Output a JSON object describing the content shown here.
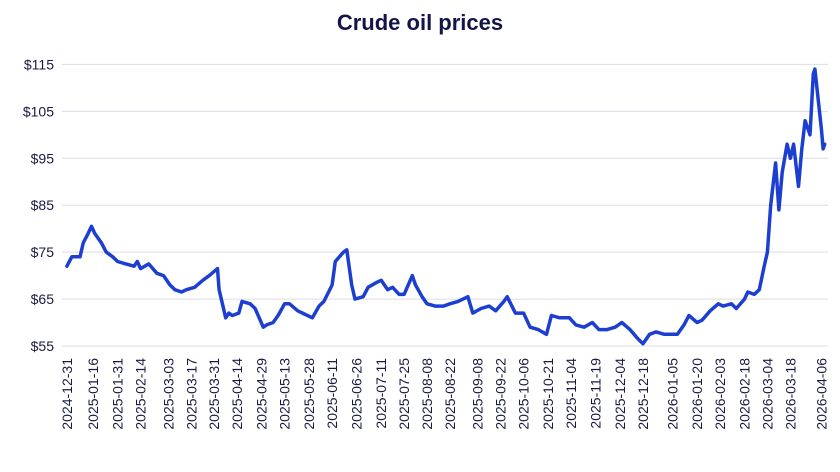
{
  "chart_data": {
    "type": "line",
    "title": "Crude oil prices",
    "color": "#1c3fd1",
    "grid": true,
    "xlim": [
      "2024-12-28",
      "2026-04-10"
    ],
    "ylim": [
      55,
      117
    ],
    "yticks": [
      {
        "value": 55,
        "label": "$55"
      },
      {
        "value": 65,
        "label": "$65"
      },
      {
        "value": 75,
        "label": "$75"
      },
      {
        "value": 85,
        "label": "$85"
      },
      {
        "value": 95,
        "label": "$95"
      },
      {
        "value": 105,
        "label": "$105"
      },
      {
        "value": 115,
        "label": "$115"
      }
    ],
    "xticks": [
      "2024-12-31",
      "2025-01-16",
      "2025-01-31",
      "2025-02-14",
      "2025-03-03",
      "2025-03-17",
      "2025-03-31",
      "2025-04-14",
      "2025-04-29",
      "2025-05-13",
      "2025-05-28",
      "2025-06-11",
      "2025-06-26",
      "2025-07-11",
      "2025-07-25",
      "2025-08-08",
      "2025-08-22",
      "2025-09-08",
      "2025-09-22",
      "2025-10-06",
      "2025-10-21",
      "2025-11-04",
      "2025-11-19",
      "2025-12-04",
      "2025-12-18",
      "2026-01-05",
      "2026-01-20",
      "2026-02-03",
      "2026-02-18",
      "2026-03-04",
      "2026-03-18",
      "2026-04-06"
    ],
    "x": [
      "2024-12-31",
      "2025-01-03",
      "2025-01-08",
      "2025-01-10",
      "2025-01-13",
      "2025-01-15",
      "2025-01-17",
      "2025-01-21",
      "2025-01-24",
      "2025-01-28",
      "2025-01-31",
      "2025-02-05",
      "2025-02-10",
      "2025-02-12",
      "2025-02-14",
      "2025-02-19",
      "2025-02-24",
      "2025-02-28",
      "2025-03-04",
      "2025-03-07",
      "2025-03-11",
      "2025-03-14",
      "2025-03-19",
      "2025-03-24",
      "2025-03-28",
      "2025-04-02",
      "2025-04-03",
      "2025-04-07",
      "2025-04-09",
      "2025-04-11",
      "2025-04-15",
      "2025-04-17",
      "2025-04-22",
      "2025-04-25",
      "2025-04-30",
      "2025-05-02",
      "2025-05-06",
      "2025-05-09",
      "2025-05-13",
      "2025-05-16",
      "2025-05-21",
      "2025-05-27",
      "2025-05-30",
      "2025-06-03",
      "2025-06-06",
      "2025-06-11",
      "2025-06-13",
      "2025-06-18",
      "2025-06-20",
      "2025-06-23",
      "2025-06-25",
      "2025-06-30",
      "2025-07-03",
      "2025-07-08",
      "2025-07-11",
      "2025-07-15",
      "2025-07-18",
      "2025-07-22",
      "2025-07-25",
      "2025-07-30",
      "2025-08-01",
      "2025-08-05",
      "2025-08-08",
      "2025-08-13",
      "2025-08-18",
      "2025-08-22",
      "2025-08-27",
      "2025-09-02",
      "2025-09-05",
      "2025-09-10",
      "2025-09-15",
      "2025-09-19",
      "2025-09-24",
      "2025-09-26",
      "2025-10-01",
      "2025-10-06",
      "2025-10-10",
      "2025-10-15",
      "2025-10-20",
      "2025-10-23",
      "2025-10-28",
      "2025-11-03",
      "2025-11-07",
      "2025-11-12",
      "2025-11-17",
      "2025-11-21",
      "2025-11-26",
      "2025-12-01",
      "2025-12-05",
      "2025-12-10",
      "2025-12-15",
      "2025-12-18",
      "2025-12-22",
      "2025-12-26",
      "2025-12-31",
      "2026-01-05",
      "2026-01-08",
      "2026-01-12",
      "2026-01-15",
      "2026-01-20",
      "2026-01-23",
      "2026-01-28",
      "2026-02-02",
      "2026-02-05",
      "2026-02-10",
      "2026-02-13",
      "2026-02-18",
      "2026-02-20",
      "2026-02-24",
      "2026-02-27",
      "2026-03-02",
      "2026-03-04",
      "2026-03-06",
      "2026-03-09",
      "2026-03-11",
      "2026-03-13",
      "2026-03-16",
      "2026-03-18",
      "2026-03-20",
      "2026-03-23",
      "2026-03-25",
      "2026-03-27",
      "2026-03-30",
      "2026-04-01",
      "2026-04-02",
      "2026-04-06",
      "2026-04-07",
      "2026-04-08"
    ],
    "values": [
      72,
      74,
      74,
      77,
      79,
      80.5,
      79,
      77,
      75,
      74,
      73,
      72.5,
      72,
      73,
      71.5,
      72.5,
      70.5,
      70,
      68,
      67,
      66.5,
      67,
      67.5,
      69,
      70,
      71.5,
      67,
      61,
      62,
      61.5,
      62,
      64.5,
      64,
      63,
      59,
      59.5,
      60,
      61.5,
      64,
      64,
      62.5,
      61.5,
      61,
      63.5,
      64.5,
      68,
      73,
      75,
      75.5,
      68,
      65,
      65.5,
      67.5,
      68.5,
      69,
      67,
      67.5,
      66,
      66,
      70,
      68,
      65.5,
      64,
      63.5,
      63.5,
      64,
      64.5,
      65.5,
      62,
      63,
      63.5,
      62.5,
      64.5,
      65.5,
      62,
      62,
      59,
      58.5,
      57.5,
      61.5,
      61,
      61,
      59.5,
      59,
      60,
      58.5,
      58.5,
      59,
      60,
      58.5,
      56.5,
      55.5,
      57.5,
      58,
      57.5,
      57.5,
      57.5,
      59.5,
      61.5,
      60,
      60.5,
      62.5,
      64,
      63.5,
      64,
      63,
      65,
      66.5,
      66,
      67,
      72,
      75,
      85,
      94,
      84,
      92,
      98,
      95,
      98,
      89,
      97,
      103,
      100,
      113,
      114,
      101,
      97,
      98
    ]
  }
}
